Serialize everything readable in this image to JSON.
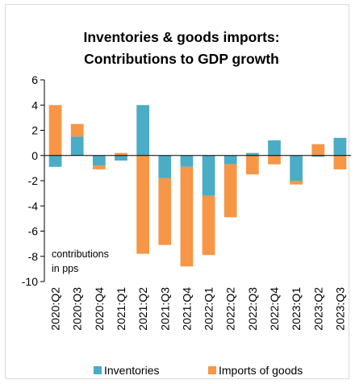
{
  "chart_data": {
    "type": "bar",
    "stacked": true,
    "title_lines": [
      "Inventories & goods imports:",
      "Contributions to GDP growth"
    ],
    "annotation_lines": [
      "contributions",
      "in pps"
    ],
    "categories": [
      "2020:Q2",
      "2020:Q3",
      "2020:Q4",
      "2021:Q1",
      "2021:Q2",
      "2021:Q3",
      "2021:Q4",
      "2022:Q1",
      "2022:Q2",
      "2022:Q3",
      "2022:Q4",
      "2023:Q1",
      "2023:Q2",
      "2023:Q3"
    ],
    "series": [
      {
        "name": "Inventories",
        "color": "#4bacc6",
        "values": [
          -0.9,
          1.5,
          -0.8,
          -0.4,
          4.0,
          -1.8,
          -0.9,
          -3.2,
          -0.7,
          0.2,
          1.2,
          -2.0,
          -0.1,
          1.4
        ]
      },
      {
        "name": "Imports of goods",
        "color": "#f79646",
        "values": [
          4.0,
          1.0,
          -0.3,
          0.2,
          -7.8,
          -5.3,
          -7.9,
          -4.7,
          -4.2,
          -1.5,
          -0.7,
          -0.3,
          0.9,
          -1.1
        ]
      }
    ],
    "ylim": [
      -10,
      6
    ],
    "yticks": [
      6,
      4,
      2,
      0,
      -2,
      -4,
      -6,
      -8,
      -10
    ],
    "legend_position": "bottom",
    "grid": false
  }
}
